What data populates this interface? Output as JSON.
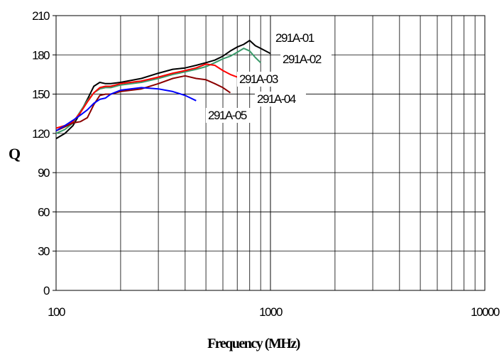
{
  "chart_data": {
    "type": "line",
    "title": "",
    "xlabel": "Frequency (MHz)",
    "ylabel": "Q",
    "xscale": "log",
    "xlim": [
      100,
      10000
    ],
    "ylim": [
      0,
      210
    ],
    "xticks": [
      100,
      1000,
      10000
    ],
    "xtick_labels": [
      "100",
      "1000",
      "10000"
    ],
    "yticks": [
      0,
      30,
      60,
      90,
      120,
      150,
      180,
      210
    ],
    "ytick_labels": [
      "0",
      "30",
      "60",
      "90",
      "120",
      "150",
      "180",
      "210"
    ],
    "grid": true,
    "legend": "inline labels near line ends",
    "series": [
      {
        "name": "291A-01",
        "color": "#000000",
        "x": [
          100,
          110,
          120,
          130,
          140,
          150,
          160,
          170,
          180,
          200,
          250,
          300,
          350,
          400,
          450,
          500,
          550,
          600,
          650,
          700,
          750,
          800,
          850,
          900,
          1000
        ],
        "y": [
          116,
          120,
          126,
          136,
          146,
          156,
          159,
          158,
          158,
          159,
          162,
          166,
          169,
          170,
          172,
          174,
          176,
          179,
          183,
          186,
          188,
          191,
          187,
          185,
          181
        ]
      },
      {
        "name": "291A-02",
        "color": "#3a9a6a",
        "x": [
          100,
          110,
          120,
          130,
          140,
          150,
          160,
          170,
          180,
          200,
          250,
          300,
          350,
          400,
          450,
          500,
          550,
          600,
          650,
          700,
          750,
          800,
          850,
          900
        ],
        "y": [
          120,
          123,
          128,
          137,
          145,
          151,
          154,
          155,
          155,
          157,
          159,
          162,
          165,
          167,
          169,
          171,
          174,
          177,
          179,
          182,
          185,
          183,
          178,
          174
        ]
      },
      {
        "name": "291A-03",
        "color": "#ff0000",
        "x": [
          100,
          110,
          120,
          130,
          140,
          150,
          160,
          170,
          180,
          200,
          250,
          300,
          350,
          400,
          450,
          500,
          550,
          600,
          650,
          700
        ],
        "y": [
          124,
          126,
          129,
          136,
          144,
          151,
          155,
          156,
          156,
          158,
          160,
          163,
          166,
          168,
          170,
          173,
          172,
          168,
          165,
          163
        ]
      },
      {
        "name": "291A-04",
        "color": "#8b0000",
        "x": [
          100,
          110,
          120,
          130,
          140,
          150,
          160,
          170,
          180,
          200,
          250,
          300,
          350,
          400,
          450,
          500,
          550,
          600,
          650
        ],
        "y": [
          122,
          125,
          128,
          129,
          132,
          142,
          149,
          150,
          150,
          152,
          154,
          158,
          162,
          164,
          162,
          161,
          158,
          155,
          151
        ]
      },
      {
        "name": "291A-05",
        "color": "#0000ff",
        "x": [
          100,
          110,
          120,
          130,
          140,
          150,
          160,
          170,
          180,
          200,
          250,
          300,
          350,
          400,
          450
        ],
        "y": [
          122,
          126,
          130,
          134,
          138,
          143,
          146,
          147,
          150,
          153,
          155,
          154,
          152,
          149,
          145
        ]
      }
    ]
  }
}
